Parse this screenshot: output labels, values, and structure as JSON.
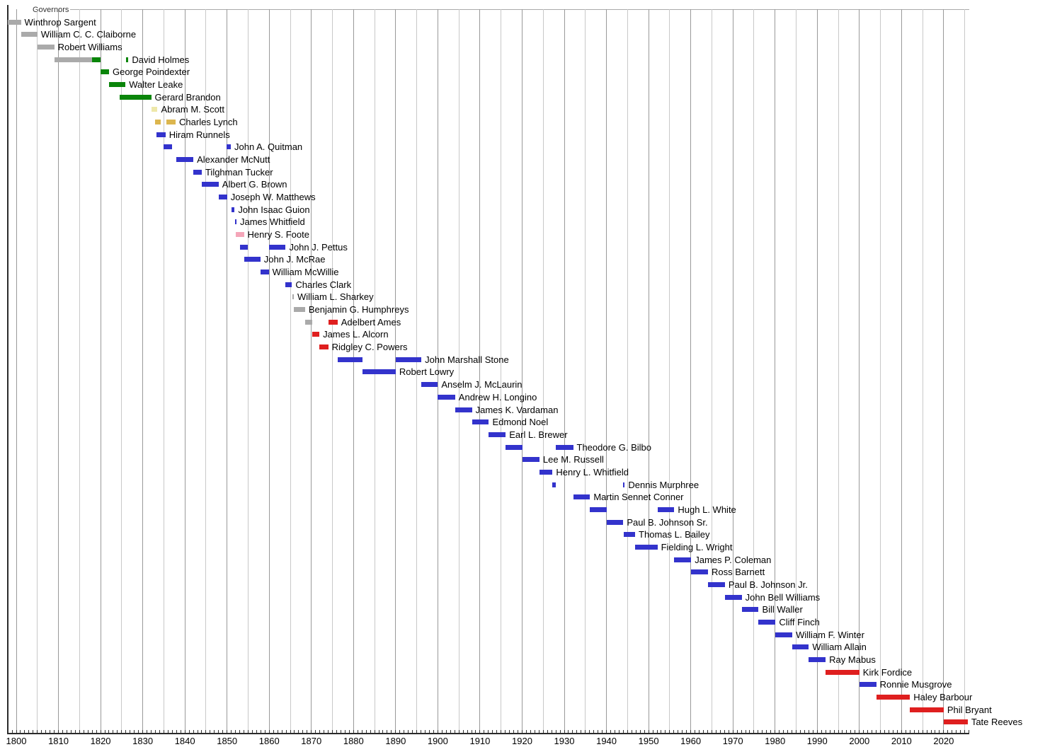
{
  "header": {
    "title": "Governors"
  },
  "colors": {
    "gray": "#aaaaaa",
    "green": "#0a850a",
    "pale_yellow": "#eee8aa",
    "gold": "#dcb64e",
    "blue": "#3333cc",
    "pink": "#f4a6b9",
    "red": "#df1f1f"
  },
  "axis": {
    "unit": "year",
    "range": [
      1798,
      2026
    ],
    "gridline_start": 1800,
    "gridline_end": 2025,
    "gridline_step": 5,
    "tick_start": 1798,
    "tick_end": 2026,
    "tick_step": 1,
    "labels": [
      "1800",
      "1810",
      "1820",
      "1830",
      "1840",
      "1850",
      "1860",
      "1870",
      "1880",
      "1890",
      "1900",
      "1910",
      "1920",
      "1930",
      "1940",
      "1950",
      "1960",
      "1970",
      "1980",
      "1990",
      "2000",
      "2010",
      "2020"
    ]
  },
  "chart_data": {
    "type": "timeline",
    "title": "Governors",
    "x_range": [
      1798,
      2026
    ],
    "legend_position": "none",
    "grid": "vertical-5yr",
    "rows": [
      {
        "name": "Winthrop Sargent",
        "terms": [
          [
            1798.0,
            1801.1,
            "gray"
          ]
        ]
      },
      {
        "name": "William C. C. Claiborne",
        "terms": [
          [
            1801.1,
            1805.0,
            "gray"
          ]
        ]
      },
      {
        "name": "Robert Williams",
        "terms": [
          [
            1805.0,
            1809.0,
            "gray"
          ]
        ]
      },
      {
        "name": "David Holmes",
        "terms": [
          [
            1809.0,
            1817.9,
            "gray"
          ],
          [
            1817.9,
            1820.0,
            "green"
          ],
          [
            1826.0,
            1826.6,
            "green"
          ]
        ]
      },
      {
        "name": "George Poindexter",
        "terms": [
          [
            1820.0,
            1822.0,
            "green"
          ]
        ]
      },
      {
        "name": "Walter Leake",
        "terms": [
          [
            1822.0,
            1825.9,
            "green"
          ]
        ]
      },
      {
        "name": "Gerard Brandon",
        "terms": [
          [
            1824.5,
            1832.0,
            "green"
          ]
        ]
      },
      {
        "name": "Abram M. Scott",
        "terms": [
          [
            1832.0,
            1833.5,
            "pale_yellow"
          ]
        ]
      },
      {
        "name": "Charles Lynch",
        "terms": [
          [
            1833.0,
            1834.3,
            "gold"
          ],
          [
            1835.6,
            1837.8,
            "gold"
          ]
        ]
      },
      {
        "name": "Hiram Runnels",
        "terms": [
          [
            1833.3,
            1835.4,
            "blue"
          ]
        ]
      },
      {
        "name": "John A. Quitman",
        "terms": [
          [
            1834.9,
            1836.9,
            "blue"
          ],
          [
            1849.9,
            1850.9,
            "blue"
          ]
        ]
      },
      {
        "name": "Alexander McNutt",
        "terms": [
          [
            1838.0,
            1842.0,
            "blue"
          ]
        ]
      },
      {
        "name": "Tilghman Tucker",
        "terms": [
          [
            1842.0,
            1844.0,
            "blue"
          ]
        ]
      },
      {
        "name": "Albert G. Brown",
        "terms": [
          [
            1844.0,
            1848.0,
            "blue"
          ]
        ]
      },
      {
        "name": "Joseph W. Matthews",
        "terms": [
          [
            1848.0,
            1850.0,
            "blue"
          ]
        ]
      },
      {
        "name": "John Isaac Guion",
        "terms": [
          [
            1851.0,
            1851.8,
            "blue"
          ]
        ]
      },
      {
        "name": "James Whitfield",
        "terms": [
          [
            1851.9,
            1852.1,
            "blue"
          ]
        ]
      },
      {
        "name": "Henry S. Foote",
        "terms": [
          [
            1852.0,
            1854.0,
            "pink"
          ]
        ]
      },
      {
        "name": "John J. Pettus",
        "terms": [
          [
            1853.0,
            1855.0,
            "blue"
          ],
          [
            1859.9,
            1863.9,
            "blue"
          ]
        ]
      },
      {
        "name": "John J. McRae",
        "terms": [
          [
            1854.0,
            1857.9,
            "blue"
          ]
        ]
      },
      {
        "name": "William McWillie",
        "terms": [
          [
            1857.9,
            1859.9,
            "blue"
          ]
        ]
      },
      {
        "name": "Charles Clark",
        "terms": [
          [
            1863.9,
            1865.4,
            "blue"
          ]
        ]
      },
      {
        "name": "William L. Sharkey",
        "terms": [
          [
            1865.5,
            1865.8,
            "gray"
          ]
        ]
      },
      {
        "name": "Benjamin G. Humphreys",
        "terms": [
          [
            1865.8,
            1868.5,
            "gray"
          ]
        ]
      },
      {
        "name": "Adelbert Ames",
        "terms": [
          [
            1868.5,
            1870.2,
            "gray"
          ],
          [
            1874.0,
            1876.2,
            "red"
          ]
        ]
      },
      {
        "name": "James L. Alcorn",
        "terms": [
          [
            1870.2,
            1871.9,
            "red"
          ]
        ]
      },
      {
        "name": "Ridgley C. Powers",
        "terms": [
          [
            1871.9,
            1874.0,
            "red"
          ]
        ]
      },
      {
        "name": "John Marshall Stone",
        "terms": [
          [
            1876.2,
            1882.1,
            "blue"
          ],
          [
            1890.0,
            1896.1,
            "blue"
          ]
        ]
      },
      {
        "name": "Robert Lowry",
        "terms": [
          [
            1882.1,
            1890.0,
            "blue"
          ]
        ]
      },
      {
        "name": "Anselm J. McLaurin",
        "terms": [
          [
            1896.1,
            1900.0,
            "blue"
          ]
        ]
      },
      {
        "name": "Andrew H. Longino",
        "terms": [
          [
            1900.0,
            1904.1,
            "blue"
          ]
        ]
      },
      {
        "name": "James K. Vardaman",
        "terms": [
          [
            1904.1,
            1908.1,
            "blue"
          ]
        ]
      },
      {
        "name": "Edmond Noel",
        "terms": [
          [
            1908.1,
            1912.1,
            "blue"
          ]
        ]
      },
      {
        "name": "Earl L. Brewer",
        "terms": [
          [
            1912.1,
            1916.1,
            "blue"
          ]
        ]
      },
      {
        "name": "Theodore G. Bilbo",
        "terms": [
          [
            1916.1,
            1920.1,
            "blue"
          ],
          [
            1928.0,
            1932.1,
            "blue"
          ]
        ]
      },
      {
        "name": "Lee M. Russell",
        "terms": [
          [
            1920.1,
            1924.1,
            "blue"
          ]
        ]
      },
      {
        "name": "Henry L. Whitfield",
        "terms": [
          [
            1924.1,
            1927.2,
            "blue"
          ]
        ]
      },
      {
        "name": "Dennis Murphree",
        "terms": [
          [
            1927.2,
            1928.0,
            "blue"
          ],
          [
            1944.0,
            1944.2,
            "blue"
          ]
        ]
      },
      {
        "name": "Martin Sennet Conner",
        "terms": [
          [
            1932.1,
            1936.1,
            "blue"
          ]
        ]
      },
      {
        "name": "Hugh L. White",
        "terms": [
          [
            1936.1,
            1940.1,
            "blue"
          ],
          [
            1952.1,
            1956.1,
            "blue"
          ]
        ]
      },
      {
        "name": "Paul B. Johnson Sr.",
        "terms": [
          [
            1940.1,
            1944.0,
            "blue"
          ]
        ]
      },
      {
        "name": "Thomas L. Bailey",
        "terms": [
          [
            1944.1,
            1946.8,
            "blue"
          ]
        ]
      },
      {
        "name": "Fielding L. Wright",
        "terms": [
          [
            1946.8,
            1952.1,
            "blue"
          ]
        ]
      },
      {
        "name": "James P. Coleman",
        "terms": [
          [
            1956.1,
            1960.1,
            "blue"
          ]
        ]
      },
      {
        "name": "Ross Barnett",
        "terms": [
          [
            1960.1,
            1964.1,
            "blue"
          ]
        ]
      },
      {
        "name": "Paul B. Johnson Jr.",
        "terms": [
          [
            1964.1,
            1968.1,
            "blue"
          ]
        ]
      },
      {
        "name": "John Bell Williams",
        "terms": [
          [
            1968.1,
            1972.1,
            "blue"
          ]
        ]
      },
      {
        "name": "Bill Waller",
        "terms": [
          [
            1972.1,
            1976.1,
            "blue"
          ]
        ]
      },
      {
        "name": "Cliff Finch",
        "terms": [
          [
            1976.1,
            1980.1,
            "blue"
          ]
        ]
      },
      {
        "name": "William F. Winter",
        "terms": [
          [
            1980.1,
            1984.1,
            "blue"
          ]
        ]
      },
      {
        "name": "William Allain",
        "terms": [
          [
            1984.1,
            1988.0,
            "blue"
          ]
        ]
      },
      {
        "name": "Ray Mabus",
        "terms": [
          [
            1988.0,
            1992.0,
            "blue"
          ]
        ]
      },
      {
        "name": "Kirk Fordice",
        "terms": [
          [
            1992.0,
            2000.0,
            "red"
          ]
        ]
      },
      {
        "name": "Ronnie Musgrove",
        "terms": [
          [
            2000.0,
            2004.0,
            "blue"
          ]
        ]
      },
      {
        "name": "Haley Barbour",
        "terms": [
          [
            2004.0,
            2012.0,
            "red"
          ]
        ]
      },
      {
        "name": "Phil Bryant",
        "terms": [
          [
            2012.0,
            2020.0,
            "red"
          ]
        ]
      },
      {
        "name": "Tate Reeves",
        "terms": [
          [
            2020.0,
            2025.7,
            "red"
          ]
        ]
      }
    ]
  }
}
